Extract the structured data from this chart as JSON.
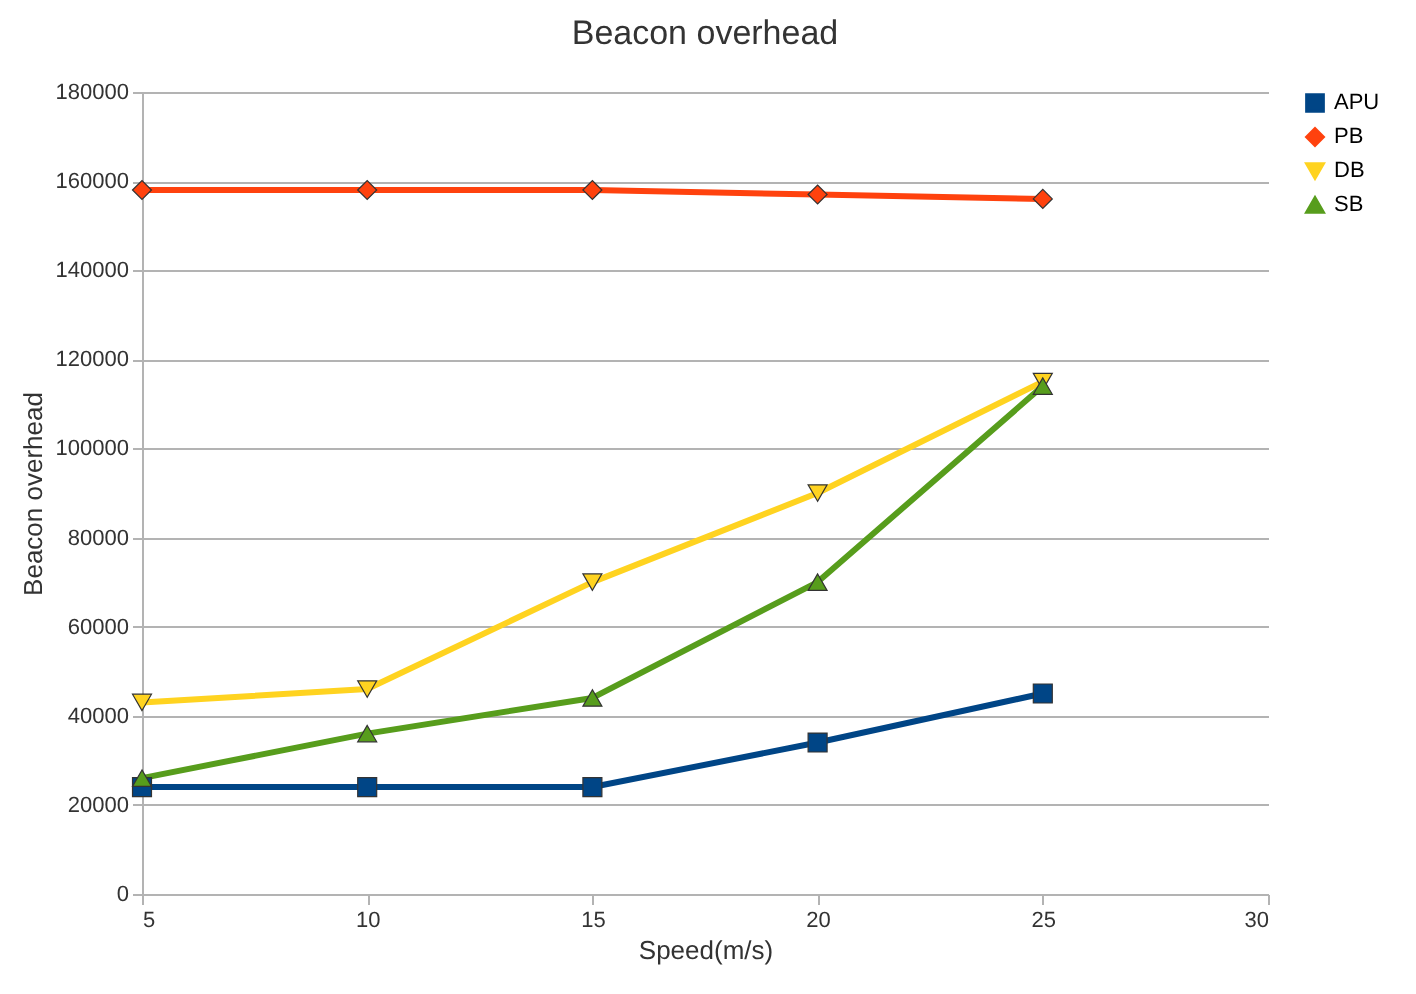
{
  "chart_data": {
    "type": "line",
    "title": "Beacon overhead",
    "xlabel": "Speed(m/s)",
    "ylabel": "Beacon overhead",
    "x": [
      5,
      10,
      15,
      20,
      25
    ],
    "xlim": [
      5,
      30
    ],
    "xticks": [
      5,
      10,
      15,
      20,
      25,
      30
    ],
    "ylim": [
      0,
      180000
    ],
    "yticks": [
      0,
      20000,
      40000,
      60000,
      80000,
      100000,
      120000,
      140000,
      160000,
      180000
    ],
    "grid": "y",
    "legend": "right",
    "line_style": "solid",
    "series": [
      {
        "name": "APU",
        "color": "#004586",
        "marker": "square",
        "values": [
          24000,
          24000,
          24000,
          34000,
          45000
        ]
      },
      {
        "name": "PB",
        "color": "#ff420e",
        "marker": "diamond",
        "values": [
          158000,
          158000,
          158000,
          157000,
          156000
        ]
      },
      {
        "name": "DB",
        "color": "#ffd320",
        "marker": "triangle-down",
        "values": [
          43000,
          46000,
          70000,
          90000,
          115000
        ]
      },
      {
        "name": "SB",
        "color": "#579d1c",
        "marker": "triangle-up",
        "values": [
          26000,
          36000,
          44000,
          70000,
          114000
        ]
      }
    ]
  }
}
